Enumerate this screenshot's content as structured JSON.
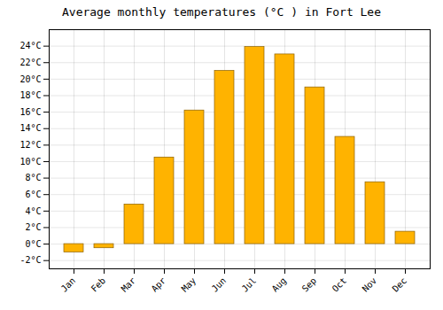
{
  "chart_data": {
    "type": "bar",
    "title": "Average monthly temperatures (°C ) in Fort Lee",
    "categories": [
      "Jan",
      "Feb",
      "Mar",
      "Apr",
      "May",
      "Jun",
      "Jul",
      "Aug",
      "Sep",
      "Oct",
      "Nov",
      "Dec"
    ],
    "values": [
      -1.0,
      -0.5,
      4.8,
      10.5,
      16.2,
      21.0,
      23.9,
      23.0,
      19.0,
      13.0,
      7.5,
      1.5
    ],
    "color": "#FFB300",
    "ylim": [
      -3,
      26
    ],
    "yticks": [
      {
        "value": -2,
        "label": "-2°C"
      },
      {
        "value": 0,
        "label": "0°C"
      },
      {
        "value": 2,
        "label": "2°C"
      },
      {
        "value": 4,
        "label": "4°C"
      },
      {
        "value": 6,
        "label": "6°C"
      },
      {
        "value": 8,
        "label": "8°C"
      },
      {
        "value": 10,
        "label": "10°C"
      },
      {
        "value": 12,
        "label": "12°C"
      },
      {
        "value": 14,
        "label": "14°C"
      },
      {
        "value": 16,
        "label": "16°C"
      },
      {
        "value": 18,
        "label": "18°C"
      },
      {
        "value": 20,
        "label": "20°C"
      },
      {
        "value": 22,
        "label": "22°C"
      },
      {
        "value": 24,
        "label": "24°C"
      }
    ],
    "grid": true
  }
}
